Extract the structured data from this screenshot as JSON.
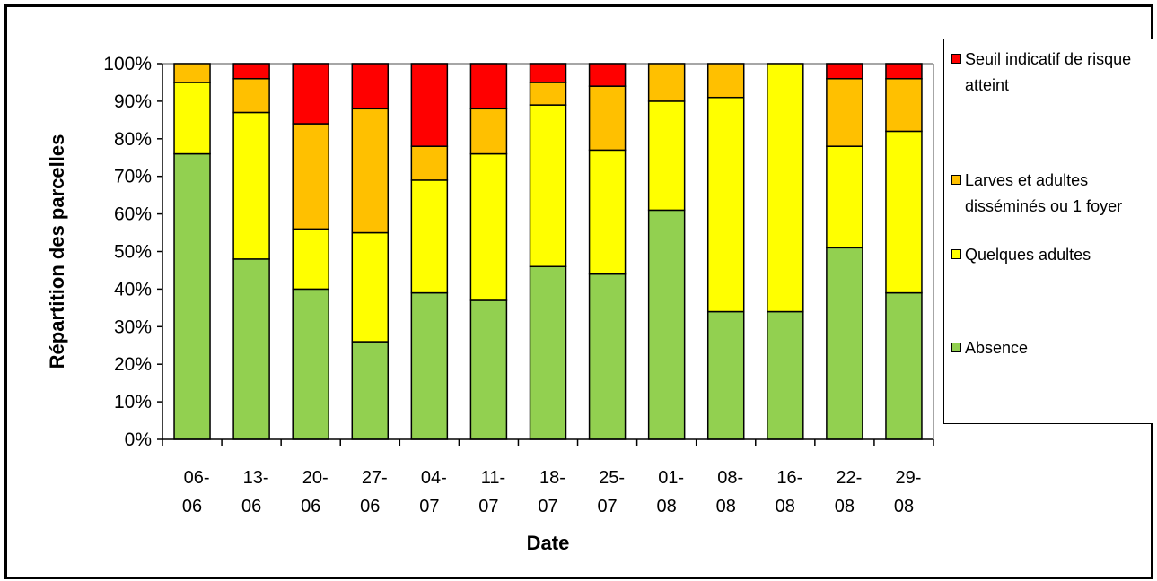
{
  "chart_data": {
    "type": "bar",
    "stacked": true,
    "categories": [
      "06-\n06",
      "13-\n06",
      "20-\n06",
      "27-\n06",
      "04-\n07",
      "11-\n07",
      "18-\n07",
      "25-\n07",
      "01-\n08",
      "08-\n08",
      "16-\n08",
      "22-\n08",
      "29-\n08"
    ],
    "series": [
      {
        "name": "Absence",
        "color": "#92d050",
        "values": [
          76,
          48,
          40,
          26,
          39,
          37,
          46,
          44,
          61,
          34,
          34,
          51,
          39
        ]
      },
      {
        "name": "Quelques adultes",
        "color": "#ffff00",
        "values": [
          19,
          39,
          16,
          29,
          30,
          39,
          43,
          33,
          29,
          57,
          66,
          27,
          43
        ]
      },
      {
        "name": "Larves et adultes disséminés ou 1 foyer",
        "color": "#ffc000",
        "values": [
          5,
          9,
          28,
          33,
          9,
          12,
          6,
          17,
          10,
          9,
          0,
          18,
          14
        ]
      },
      {
        "name": "Seuil indicatif de risque atteint",
        "color": "#ff0000",
        "values": [
          0,
          4,
          16,
          12,
          22,
          12,
          5,
          6,
          0,
          0,
          0,
          4,
          4
        ]
      }
    ],
    "yticks": [
      "0%",
      "10%",
      "20%",
      "30%",
      "40%",
      "50%",
      "60%",
      "70%",
      "80%",
      "90%",
      "100%"
    ],
    "ylim": [
      0,
      100
    ],
    "xlabel": "Date",
    "ylabel": "Répartition des parcelles",
    "grid": false,
    "legend_position": "right"
  }
}
